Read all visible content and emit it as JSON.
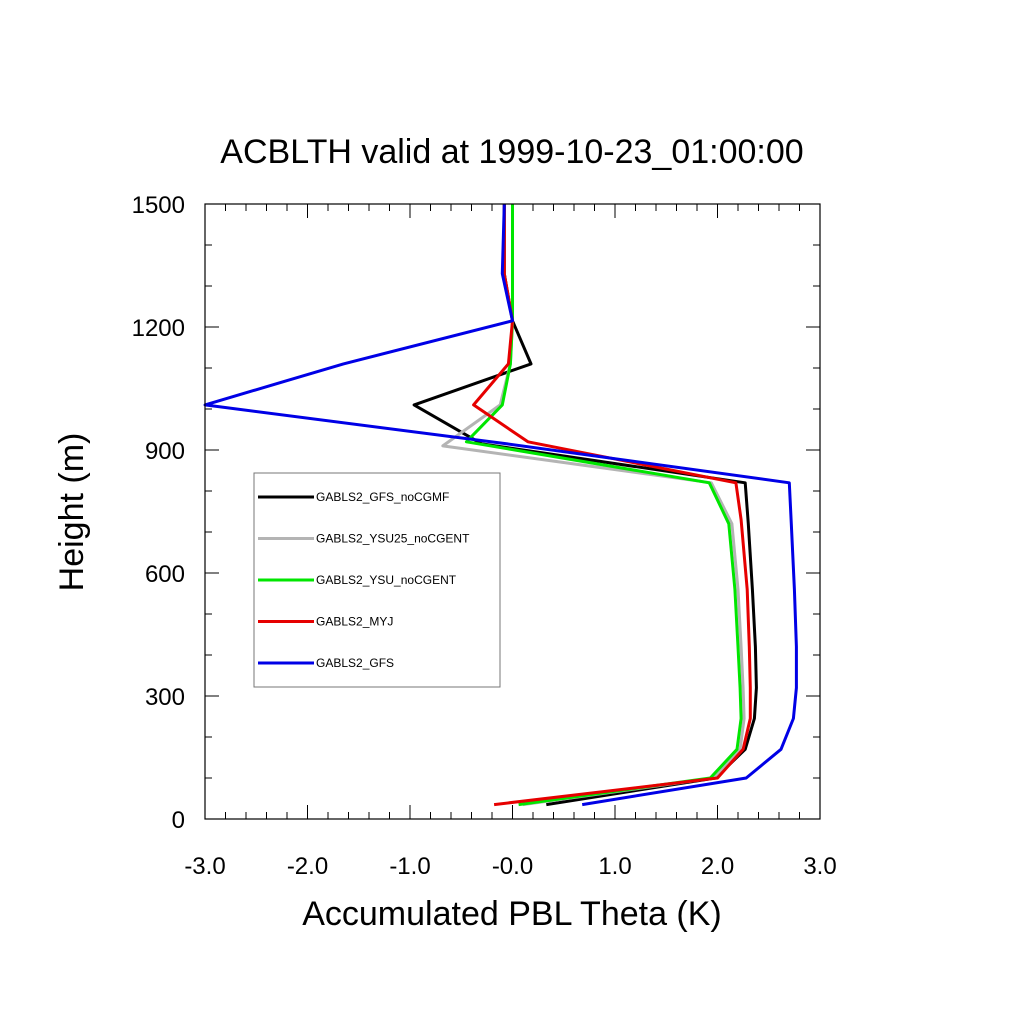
{
  "chart_data": {
    "type": "line",
    "title": "ACBLTH valid at 1999-10-23_01:00:00",
    "xlabel": "Accumulated PBL Theta (K)",
    "ylabel": "Height (m)",
    "xlim": [
      -3.0,
      3.0
    ],
    "ylim": [
      0,
      1500
    ],
    "xticks": [
      -3.0,
      -2.0,
      -1.0,
      0.0,
      1.0,
      2.0,
      3.0
    ],
    "xtick_labels": [
      "-3.0",
      "-2.0",
      "-1.0",
      "-0.0",
      "1.0",
      "2.0",
      "3.0"
    ],
    "yticks": [
      0,
      300,
      600,
      900,
      1200,
      1500
    ],
    "ytick_labels": [
      "0",
      "300",
      "600",
      "900",
      "1200",
      "1500"
    ],
    "grid": false,
    "legend_position": "left-center inside plot",
    "series": [
      {
        "name": "GABLS2_GFS_noCGMF",
        "color": "#000000",
        "points": [
          [
            0.33,
            35
          ],
          [
            1.98,
            100
          ],
          [
            2.27,
            170
          ],
          [
            2.36,
            245
          ],
          [
            2.38,
            320
          ],
          [
            2.37,
            420
          ],
          [
            2.34,
            560
          ],
          [
            2.3,
            720
          ],
          [
            2.27,
            820
          ],
          [
            -0.3,
            915
          ],
          [
            -0.96,
            1010
          ],
          [
            0.18,
            1110
          ],
          [
            0.0,
            1215
          ],
          [
            -0.08,
            1330
          ],
          [
            -0.08,
            1500
          ]
        ]
      },
      {
        "name": "GABLS2_YSU25_noCGENT",
        "color": "#b4b4b4",
        "points": [
          [
            0.1,
            35
          ],
          [
            1.96,
            100
          ],
          [
            2.22,
            170
          ],
          [
            2.26,
            245
          ],
          [
            2.25,
            320
          ],
          [
            2.23,
            420
          ],
          [
            2.2,
            560
          ],
          [
            2.14,
            720
          ],
          [
            1.94,
            820
          ],
          [
            -0.68,
            910
          ],
          [
            -0.12,
            1010
          ],
          [
            -0.02,
            1110
          ],
          [
            0.0,
            1215
          ],
          [
            0.0,
            1330
          ],
          [
            0.0,
            1500
          ]
        ]
      },
      {
        "name": "GABLS2_YSU_noCGENT",
        "color": "#00e600",
        "points": [
          [
            0.06,
            35
          ],
          [
            1.93,
            100
          ],
          [
            2.19,
            170
          ],
          [
            2.23,
            245
          ],
          [
            2.22,
            320
          ],
          [
            2.2,
            420
          ],
          [
            2.17,
            560
          ],
          [
            2.11,
            720
          ],
          [
            1.92,
            820
          ],
          [
            -0.45,
            920
          ],
          [
            -0.1,
            1010
          ],
          [
            -0.02,
            1110
          ],
          [
            0.0,
            1215
          ],
          [
            0.0,
            1330
          ],
          [
            0.0,
            1500
          ]
        ]
      },
      {
        "name": "GABLS2_MYJ",
        "color": "#e60000",
        "points": [
          [
            -0.18,
            35
          ],
          [
            2.0,
            100
          ],
          [
            2.25,
            170
          ],
          [
            2.32,
            245
          ],
          [
            2.32,
            320
          ],
          [
            2.31,
            420
          ],
          [
            2.29,
            560
          ],
          [
            2.23,
            730
          ],
          [
            2.18,
            820
          ],
          [
            0.15,
            920
          ],
          [
            -0.38,
            1010
          ],
          [
            -0.04,
            1110
          ],
          [
            0.0,
            1215
          ],
          [
            -0.08,
            1330
          ],
          [
            -0.08,
            1500
          ]
        ]
      },
      {
        "name": "GABLS2_GFS",
        "color": "#0000e6",
        "points": [
          [
            0.68,
            35
          ],
          [
            2.28,
            100
          ],
          [
            2.62,
            170
          ],
          [
            2.74,
            245
          ],
          [
            2.77,
            320
          ],
          [
            2.77,
            420
          ],
          [
            2.75,
            560
          ],
          [
            2.72,
            720
          ],
          [
            2.7,
            820
          ],
          [
            -0.05,
            915
          ],
          [
            -3.0,
            1010
          ],
          [
            -1.65,
            1110
          ],
          [
            0.0,
            1215
          ],
          [
            -0.1,
            1330
          ],
          [
            -0.08,
            1500
          ]
        ]
      }
    ]
  }
}
